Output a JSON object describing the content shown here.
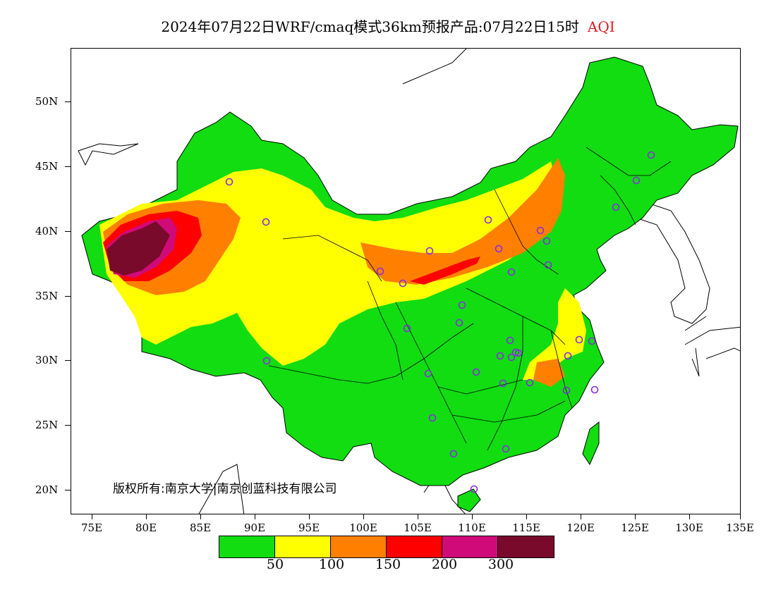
{
  "title": {
    "main": "2024年07月22日WRF/cmaq模式36km预报产品:07月22日15时",
    "field": "AQI"
  },
  "axes": {
    "lat_labels": [
      "50N",
      "45N",
      "40N",
      "35N",
      "30N",
      "25N",
      "20N"
    ],
    "lon_labels": [
      "75E",
      "80E",
      "85E",
      "90E",
      "95E",
      "100E",
      "105E",
      "110E",
      "115E",
      "120E",
      "125E",
      "130E",
      "135E"
    ]
  },
  "copyright": "版权所有:南京大学|南京创蓝科技有限公司",
  "legend": {
    "colors": [
      "#11dd11",
      "#ffff00",
      "#ff8000",
      "#ff0000",
      "#d10a7a",
      "#7a0a2b"
    ],
    "thresholds": [
      "50",
      "100",
      "150",
      "200",
      "300"
    ]
  },
  "map_style": {
    "ocean": "#ffffff",
    "border": "#000000"
  },
  "station_marker_color": "#8a2be2"
}
